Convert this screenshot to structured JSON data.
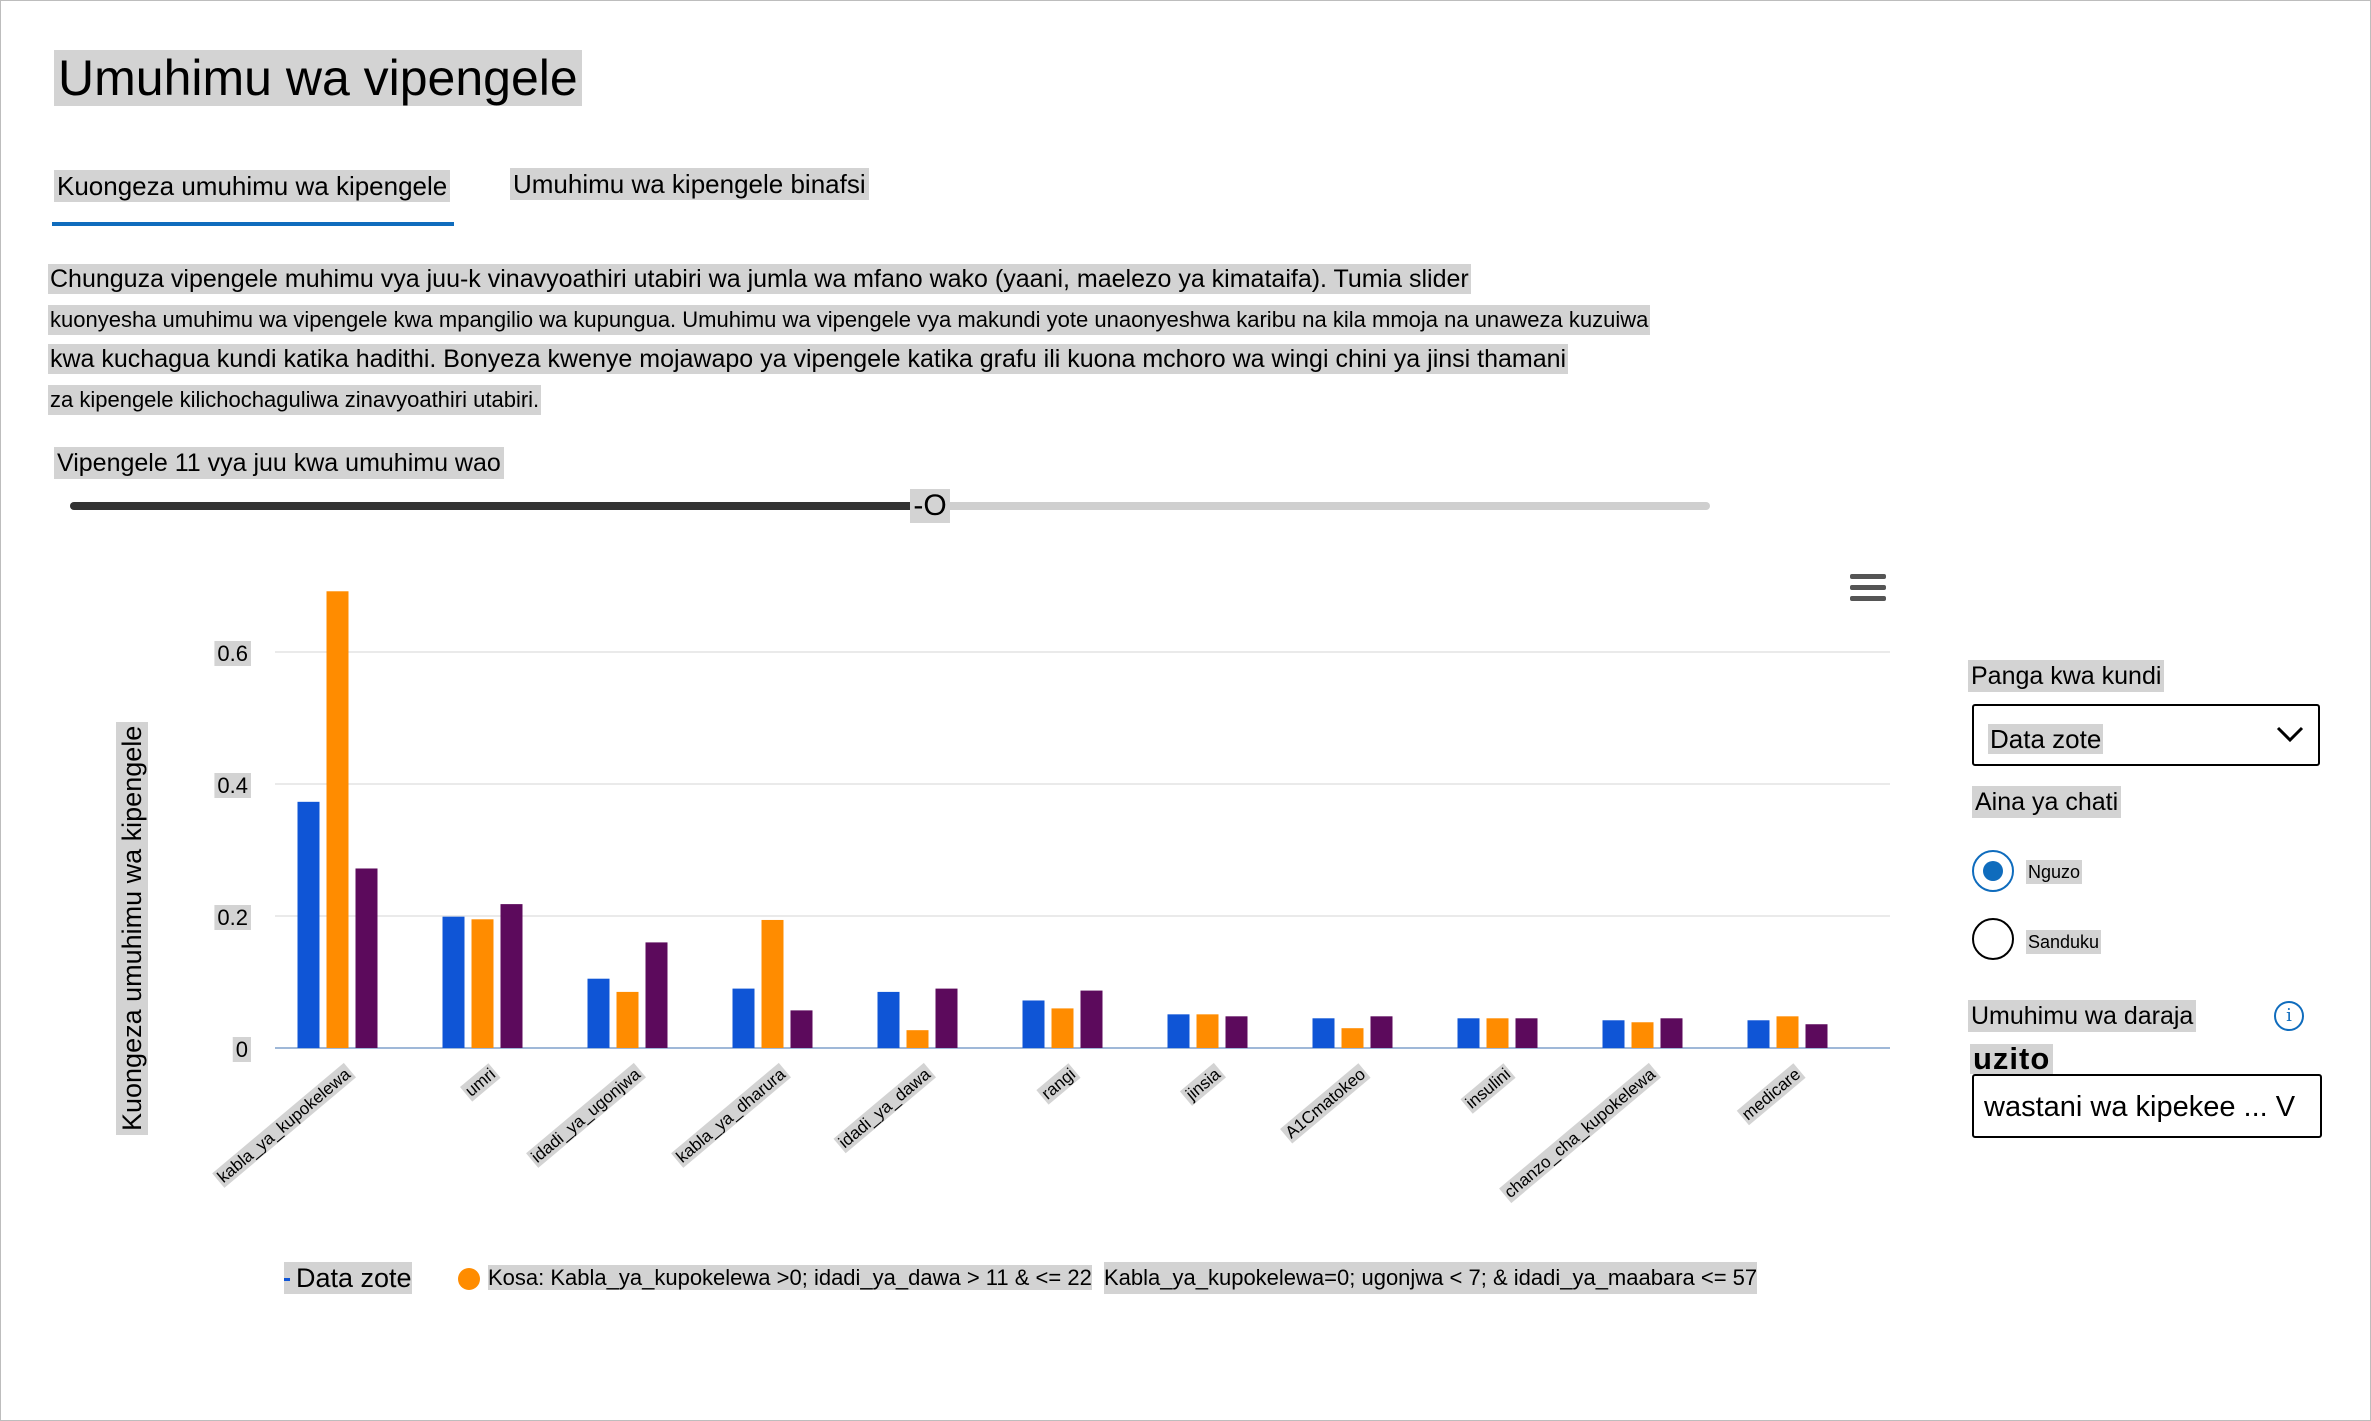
{
  "page": {
    "title": "Umuhimu wa vipengele"
  },
  "tabs": [
    {
      "label": "Kuongeza umuhimu wa kipengele",
      "active": true
    },
    {
      "label": "Umuhimu wa kipengele binafsi",
      "active": false
    }
  ],
  "description": {
    "lines": [
      "Chunguza vipengele muhimu vya juu-k vinavyoathiri utabiri wa jumla wa mfano wako (yaani, maelezo ya kimataifa). Tumia slider",
      "kuonyesha umuhimu wa vipengele kwa mpangilio wa kupungua. Umuhimu wa vipengele vya makundi yote unaonyeshwa karibu na kila mmoja na unaweza kuzuiwa",
      "kwa kuchagua kundi katika hadithi. Bonyeza kwenye mojawapo ya vipengele katika grafu ili kuona mchoro wa wingi chini ya jinsi thamani",
      "za kipengele kilichochaguliwa zinavyoathiri utabiri."
    ]
  },
  "slider": {
    "label": "Vipengele 11 vya juu kwa umuhimu wao",
    "thumb_glyph": "-O",
    "value": 11,
    "max": 21
  },
  "chart_menu_icon": "hamburger-menu-icon",
  "chart_data": {
    "type": "bar",
    "ylabel": "Kuongeza umuhimu wa kipengele",
    "ylim": [
      0,
      0.7
    ],
    "yticks": [
      {
        "value": 0,
        "label": "0"
      },
      {
        "value": 0.2,
        "label": "0.2"
      },
      {
        "value": 0.4,
        "label": "0.4"
      },
      {
        "value": 0.6,
        "label": "0.6"
      }
    ],
    "grid": true,
    "categories": [
      "kabla_ya_kupokelewa",
      "umri",
      "idadi_ya_ugonjwa",
      "kabla_ya_dharura",
      "idadi_ya_dawa",
      "rangi",
      "jinsia",
      "A1Cmatokeo",
      "insulini",
      "chanzo_cha_kupokelewa",
      "medicare"
    ],
    "series": [
      {
        "name": "Data zote",
        "color": "#0f55d6",
        "values": [
          0.373,
          0.199,
          0.105,
          0.09,
          0.085,
          0.072,
          0.051,
          0.045,
          0.045,
          0.042,
          0.042
        ]
      },
      {
        "name": "Kosa: Kabla_ya_kupokelewa >0; idadi_ya_dawa > 11 & <= 22",
        "color": "#ff8c00",
        "values": [
          0.692,
          0.195,
          0.085,
          0.194,
          0.027,
          0.06,
          0.051,
          0.03,
          0.045,
          0.039,
          0.048
        ]
      },
      {
        "name": "Kabla_ya_kupokelewa=0; ugonjwa < 7; & idadi_ya_maabara <= 57",
        "color": "#5c0a5c",
        "values": [
          0.272,
          0.218,
          0.16,
          0.057,
          0.09,
          0.087,
          0.048,
          0.048,
          0.045,
          0.045,
          0.036
        ]
      }
    ],
    "legend": "bottom"
  },
  "panel": {
    "group_by_label": "Panga kwa kundi",
    "group_by_value": "Data zote",
    "chart_type_label": "Aina ya chati",
    "chart_type_options": [
      {
        "label": "Nguzo",
        "selected": true
      },
      {
        "label": "Sanduku",
        "selected": false
      }
    ],
    "importance_label": "Umuhimu wa daraja",
    "info_glyph": "i",
    "weight_label": "uzito",
    "weight_value": "wastani wa kipekee ... V"
  },
  "colors": {
    "accent": "#0f6cbd",
    "highlight": "#d3d3d3"
  }
}
